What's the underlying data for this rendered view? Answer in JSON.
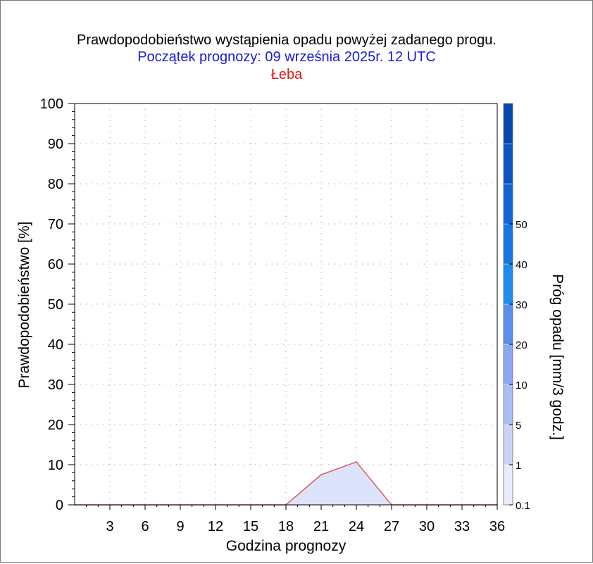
{
  "chart_data": {
    "type": "area",
    "title": "Prawdopodobieństwo wystąpienia opadu powyżej zadanego progu.",
    "subtitle": "Początek prognozy: 09 września 2025r. 12 UTC",
    "location": "Łeba",
    "xlabel": "Godzina prognozy",
    "ylabel": "Prawdopodobieństwo [%]",
    "colorbar_label": "Próg opadu [mm/3 godz.]",
    "xlim": [
      0,
      36
    ],
    "ylim": [
      0,
      100
    ],
    "x_ticks": [
      3,
      6,
      9,
      12,
      15,
      18,
      21,
      24,
      27,
      30,
      33,
      36
    ],
    "y_ticks": [
      0,
      10,
      20,
      30,
      40,
      50,
      60,
      70,
      80,
      90,
      100
    ],
    "grid": true,
    "series": [
      {
        "threshold": "0.1",
        "color": "#e06060",
        "fill": "#dde3fb",
        "x": [
          0,
          3,
          6,
          9,
          12,
          15,
          18,
          21,
          24,
          27,
          30,
          33,
          36
        ],
        "y": [
          0,
          0,
          0,
          0,
          0,
          0,
          0,
          7.5,
          10.7,
          0,
          0,
          0,
          0
        ]
      }
    ],
    "colorbar": {
      "tick_labels": [
        "0.1",
        "1",
        "5",
        "10",
        "20",
        "30",
        "40",
        "50"
      ],
      "colors": [
        "#e8ecfd",
        "#c9d4f8",
        "#aabdf4",
        "#8aa8f0",
        "#5b8ff0",
        "#1f8cf0",
        "#1776e6",
        "#1065d6",
        "#0a55c4",
        "#0648b0"
      ]
    }
  }
}
